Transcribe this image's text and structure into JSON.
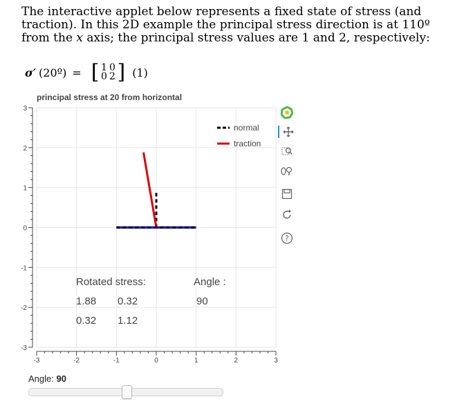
{
  "intro": {
    "line1": "The interactive applet below represents a fixed state of stress (and",
    "line2": "traction). In this 2D example the principal stress direction is at 110º",
    "line3a": "from the ",
    "line3_var": "x",
    "line3b": " axis; the principal stress values are 1 and 2, respectively:"
  },
  "formula": {
    "lhs_sigma": "σ′",
    "lhs_arg": "(20º)",
    "equals": "=",
    "matrix": [
      "1",
      "0",
      "0",
      "2"
    ],
    "eq_number": "(1)"
  },
  "plot": {
    "title": "principal stress at 20 from horizontal",
    "legend": [
      {
        "label": "normal",
        "color": "#000000",
        "dash": "dashed"
      },
      {
        "label": "traction",
        "color": "#e00000",
        "dash": "solid"
      }
    ],
    "annotations": {
      "rotated_label": "Rotated stress:",
      "r11": "1.88",
      "r12": "0.32",
      "r21": "0.32",
      "r22": "1.12",
      "angle_label": "Angle :",
      "angle_value": "90"
    },
    "colors": {
      "blue": "#1f1fd4",
      "red": "#e00000",
      "black": "#000000",
      "grid": "#e6e6e6"
    }
  },
  "chart_data": {
    "type": "line",
    "title": "principal stress at 20 from horizontal",
    "xlabel": "",
    "ylabel": "",
    "xlim": [
      -3,
      3
    ],
    "ylim": [
      -3,
      3
    ],
    "xticks": [
      "-3",
      "-2",
      "-1",
      "0",
      "1",
      "2",
      "3"
    ],
    "yticks": [
      "3",
      "2",
      "1",
      "0",
      "-1",
      "-2",
      "-3"
    ],
    "grid": true,
    "legend_position": "top-right",
    "series": [
      {
        "name": "normal",
        "style": "dashed",
        "color": "#000000",
        "x": [
          0,
          0
        ],
        "y": [
          0,
          0.9
        ]
      },
      {
        "name": "traction",
        "style": "solid",
        "color": "#e00000",
        "x": [
          0,
          -0.32
        ],
        "y": [
          0,
          1.88
        ]
      },
      {
        "style": "solid",
        "color": "#1f1fd4",
        "x": [
          -1,
          1
        ],
        "y": [
          0,
          0
        ]
      },
      {
        "style": "dashed",
        "color": "#000000",
        "x": [
          -1,
          1
        ],
        "y": [
          0,
          0
        ]
      }
    ]
  },
  "toolbar": {
    "tools": [
      "bokeh-logo-icon",
      "pan-icon",
      "box-zoom-icon",
      "wheel-zoom-icon",
      "save-icon",
      "reset-icon",
      "help-icon"
    ]
  },
  "slider": {
    "label": "Angle: ",
    "value_text": "90",
    "value": 90,
    "min": 0,
    "max": 180
  }
}
